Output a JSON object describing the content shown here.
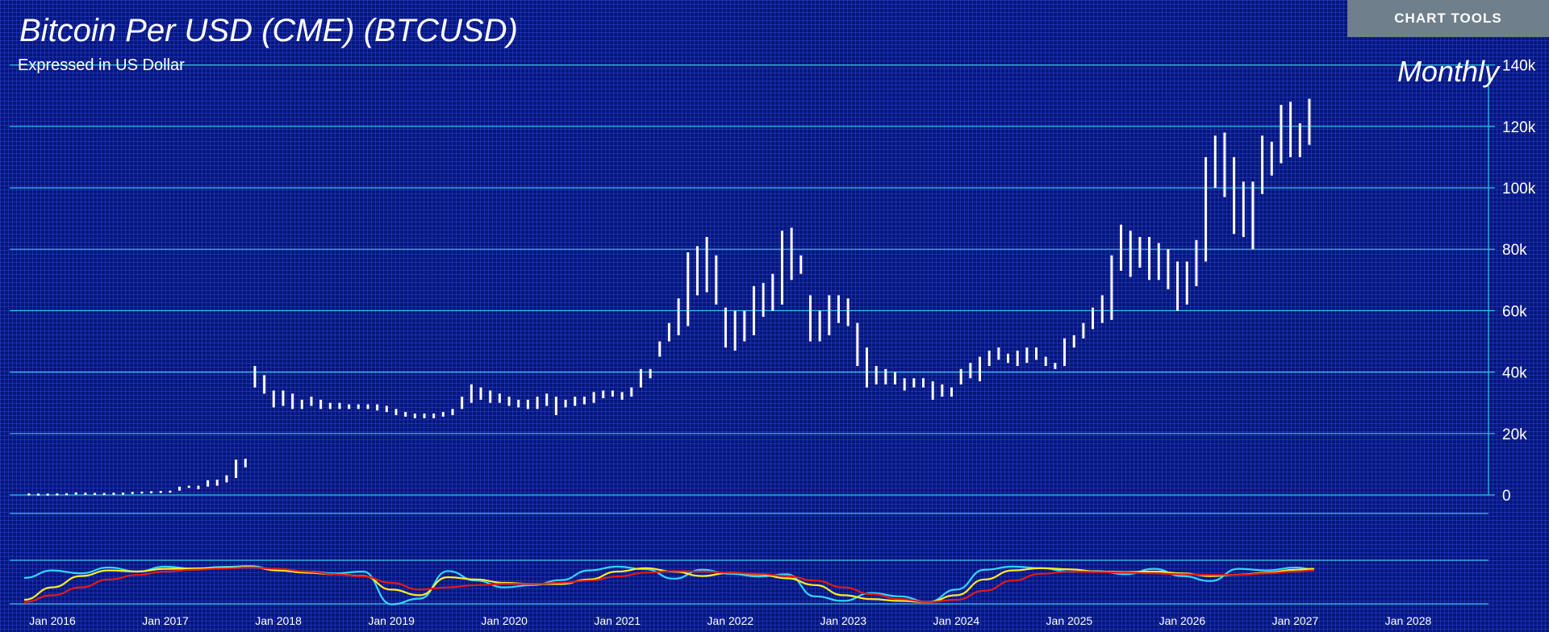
{
  "header": {
    "title": "Bitcoin Per USD (CME) (BTCUSD)",
    "subtitle": "Expressed in US Dollar",
    "frequency": "Monthly",
    "chart_tools_label": "CHART TOOLS"
  },
  "colors": {
    "background": "#06167a",
    "gridline": "#33c7e8",
    "price_bars": "#ffffff",
    "oscillator_fast": "#35d6ff",
    "oscillator_signal": "#ffee22",
    "oscillator_slow": "#e21a1a",
    "button": "#6f7f8b"
  },
  "chart_data": [
    {
      "type": "ohlc",
      "title": "Bitcoin Per USD (CME) (BTCUSD)",
      "subtitle": "Expressed in US Dollar",
      "y_ticks": [
        "0",
        "20k",
        "40k",
        "60k",
        "80k",
        "100k",
        "120k",
        "140k"
      ],
      "ylim": [
        0,
        140000
      ],
      "x_ticks": [
        "Jan 2016",
        "Jan 2017",
        "Jan 2018",
        "Jan 2019",
        "Jan 2020",
        "Jan 2021",
        "Jan 2022",
        "Jan 2023",
        "Jan 2024",
        "Jan 2025",
        "Jan 2026",
        "Jan 2027",
        "Jan 2028"
      ],
      "xlim": [
        "2015-12",
        "2028-09"
      ],
      "grid": true,
      "monthly_ranges": {
        "columns": [
          "month",
          "low",
          "high"
        ],
        "rows": [
          [
            "2016-01",
            300,
            500
          ],
          [
            "2016-02",
            350,
            450
          ],
          [
            "2016-03",
            380,
            450
          ],
          [
            "2016-04",
            400,
            500
          ],
          [
            "2016-05",
            420,
            550
          ],
          [
            "2016-06",
            500,
            800
          ],
          [
            "2016-07",
            600,
            700
          ],
          [
            "2016-08",
            550,
            650
          ],
          [
            "2016-09",
            590,
            630
          ],
          [
            "2016-10",
            600,
            720
          ],
          [
            "2016-11",
            700,
            750
          ],
          [
            "2016-12",
            740,
            980
          ],
          [
            "2017-01",
            800,
            1100
          ],
          [
            "2017-02",
            900,
            1200
          ],
          [
            "2017-03",
            900,
            1300
          ],
          [
            "2017-04",
            1100,
            1400
          ],
          [
            "2017-05",
            1400,
            2700
          ],
          [
            "2017-06",
            2300,
            3000
          ],
          [
            "2017-07",
            1900,
            3000
          ],
          [
            "2017-08",
            2700,
            4800
          ],
          [
            "2017-09",
            3000,
            5000
          ],
          [
            "2017-10",
            4100,
            6400
          ],
          [
            "2017-11",
            5500,
            11500
          ],
          [
            "2017-12",
            9000,
            11800
          ],
          [
            "2018-01",
            35000,
            42000
          ],
          [
            "2018-02",
            33000,
            39000
          ],
          [
            "2018-03",
            28500,
            34000
          ],
          [
            "2018-04",
            29000,
            34000
          ],
          [
            "2018-05",
            28000,
            33000
          ],
          [
            "2018-06",
            28000,
            31000
          ],
          [
            "2018-07",
            29000,
            32000
          ],
          [
            "2018-08",
            28000,
            31000
          ],
          [
            "2018-09",
            28000,
            30000
          ],
          [
            "2018-10",
            28000,
            30000
          ],
          [
            "2018-11",
            28000,
            29500
          ],
          [
            "2018-12",
            28000,
            29500
          ],
          [
            "2019-01",
            28000,
            29500
          ],
          [
            "2019-02",
            27500,
            29500
          ],
          [
            "2019-03",
            27000,
            29000
          ],
          [
            "2019-04",
            26000,
            28000
          ],
          [
            "2019-05",
            25500,
            27000
          ],
          [
            "2019-06",
            25000,
            26500
          ],
          [
            "2019-07",
            25000,
            26500
          ],
          [
            "2019-08",
            25000,
            26500
          ],
          [
            "2019-09",
            25500,
            27000
          ],
          [
            "2019-10",
            26000,
            28000
          ],
          [
            "2019-11",
            28000,
            32000
          ],
          [
            "2019-12",
            30000,
            36000
          ],
          [
            "2020-01",
            31000,
            35000
          ],
          [
            "2020-02",
            30000,
            34000
          ],
          [
            "2020-03",
            30000,
            33000
          ],
          [
            "2020-04",
            29000,
            32000
          ],
          [
            "2020-05",
            28500,
            31000
          ],
          [
            "2020-06",
            28000,
            31000
          ],
          [
            "2020-07",
            28000,
            32000
          ],
          [
            "2020-08",
            29000,
            33000
          ],
          [
            "2020-09",
            26000,
            32000
          ],
          [
            "2020-10",
            28500,
            31000
          ],
          [
            "2020-11",
            29000,
            32000
          ],
          [
            "2020-12",
            29500,
            32000
          ],
          [
            "2021-01",
            30000,
            33500
          ],
          [
            "2021-02",
            31500,
            34000
          ],
          [
            "2021-03",
            32000,
            34000
          ],
          [
            "2021-04",
            31000,
            33500
          ],
          [
            "2021-05",
            32000,
            35000
          ],
          [
            "2021-06",
            35000,
            41000
          ],
          [
            "2021-07",
            38000,
            41000
          ],
          [
            "2021-08",
            45000,
            50000
          ],
          [
            "2021-09",
            50000,
            56000
          ],
          [
            "2021-10",
            52000,
            64000
          ],
          [
            "2021-11",
            55000,
            79000
          ],
          [
            "2021-12",
            65000,
            81000
          ],
          [
            "2022-01",
            66000,
            84000
          ],
          [
            "2022-02",
            62000,
            78000
          ],
          [
            "2022-03",
            48000,
            61000
          ],
          [
            "2022-04",
            47000,
            60000
          ],
          [
            "2022-05",
            50000,
            60000
          ],
          [
            "2022-06",
            52000,
            68000
          ],
          [
            "2022-07",
            58000,
            69000
          ],
          [
            "2022-08",
            60000,
            72000
          ],
          [
            "2022-09",
            62000,
            86000
          ],
          [
            "2022-10",
            70000,
            87000
          ],
          [
            "2022-11",
            72000,
            78000
          ],
          [
            "2022-12",
            50000,
            65000
          ],
          [
            "2023-01",
            50000,
            60000
          ],
          [
            "2023-02",
            52000,
            65000
          ],
          [
            "2023-03",
            56000,
            65000
          ],
          [
            "2023-04",
            55000,
            64000
          ],
          [
            "2023-05",
            42000,
            56000
          ],
          [
            "2023-06",
            35000,
            48000
          ],
          [
            "2023-07",
            36000,
            42000
          ],
          [
            "2023-08",
            36000,
            41000
          ],
          [
            "2023-09",
            36000,
            40000
          ],
          [
            "2023-10",
            34000,
            38000
          ],
          [
            "2023-11",
            35000,
            38000
          ],
          [
            "2023-12",
            35000,
            38000
          ],
          [
            "2024-01",
            31000,
            37000
          ],
          [
            "2024-02",
            32000,
            36000
          ],
          [
            "2024-03",
            32000,
            35000
          ],
          [
            "2024-04",
            36000,
            41000
          ],
          [
            "2024-05",
            38000,
            43000
          ],
          [
            "2024-06",
            37000,
            45000
          ],
          [
            "2024-07",
            42000,
            47000
          ],
          [
            "2024-08",
            44000,
            48000
          ],
          [
            "2024-09",
            43000,
            46000
          ],
          [
            "2024-10",
            42000,
            47000
          ],
          [
            "2024-11",
            43000,
            48000
          ],
          [
            "2024-12",
            44000,
            48000
          ],
          [
            "2025-01",
            42000,
            45000
          ],
          [
            "2025-02",
            41000,
            43000
          ],
          [
            "2025-03",
            42000,
            51000
          ],
          [
            "2025-04",
            48000,
            52000
          ],
          [
            "2025-05",
            51000,
            56000
          ],
          [
            "2025-06",
            54000,
            61000
          ],
          [
            "2025-07",
            56000,
            65000
          ],
          [
            "2025-08",
            57000,
            78000
          ],
          [
            "2025-09",
            73000,
            88000
          ],
          [
            "2025-10",
            71000,
            86000
          ],
          [
            "2025-11",
            74000,
            84000
          ],
          [
            "2025-12",
            70000,
            84000
          ],
          [
            "2026-01",
            70000,
            82000
          ],
          [
            "2026-02",
            67000,
            80000
          ],
          [
            "2026-03",
            60000,
            76000
          ],
          [
            "2026-04",
            62000,
            76000
          ],
          [
            "2026-05",
            68000,
            83000
          ],
          [
            "2026-06",
            76000,
            110000
          ],
          [
            "2026-07",
            100000,
            117000
          ],
          [
            "2026-08",
            97000,
            118000
          ],
          [
            "2026-09",
            85000,
            110000
          ],
          [
            "2026-10",
            84000,
            102000
          ],
          [
            "2026-11",
            80000,
            102000
          ],
          [
            "2026-12",
            98000,
            117000
          ],
          [
            "2027-01",
            104000,
            115000
          ],
          [
            "2027-02",
            108000,
            127000
          ],
          [
            "2027-03",
            110000,
            128000
          ],
          [
            "2027-04",
            110000,
            121000
          ],
          [
            "2027-05",
            114000,
            129000
          ]
        ]
      }
    },
    {
      "type": "line",
      "panel": "oscillator",
      "grid": true,
      "series": [
        {
          "color": "#35d6ff",
          "x": [
            "2016-01",
            "2016-04",
            "2016-07",
            "2016-10",
            "2017-01",
            "2017-04",
            "2017-07",
            "2017-10",
            "2018-01",
            "2018-04",
            "2018-07",
            "2018-10",
            "2019-01",
            "2019-04",
            "2019-07",
            "2019-10",
            "2020-01",
            "2020-04",
            "2020-07",
            "2020-10",
            "2021-01",
            "2021-04",
            "2021-07",
            "2021-10",
            "2022-01",
            "2022-04",
            "2022-07",
            "2022-10",
            "2023-01",
            "2023-04",
            "2023-07",
            "2023-10",
            "2024-01",
            "2024-04",
            "2024-07",
            "2024-10",
            "2025-01",
            "2025-04",
            "2025-07",
            "2025-10",
            "2026-01",
            "2026-04",
            "2026-07",
            "2026-10",
            "2027-01",
            "2027-04",
            "2027-06"
          ],
          "values": [
            0.22,
            0.55,
            0.42,
            0.68,
            0.5,
            0.72,
            0.62,
            0.7,
            0.74,
            0.55,
            0.5,
            0.42,
            0.5,
            -0.95,
            -0.7,
            0.52,
            0.1,
            -0.2,
            -0.1,
            0.12,
            0.55,
            0.72,
            0.6,
            0.18,
            0.58,
            0.4,
            0.28,
            0.38,
            -0.6,
            -0.8,
            -0.45,
            -0.6,
            -0.85,
            -0.3,
            0.58,
            0.72,
            0.65,
            0.5,
            0.52,
            0.38,
            0.62,
            0.3,
            0.08,
            0.62,
            0.55,
            0.68,
            0.6
          ]
        },
        {
          "color": "#ffee22",
          "x": [
            "2016-01",
            "2016-04",
            "2016-07",
            "2016-10",
            "2017-01",
            "2017-04",
            "2017-07",
            "2017-10",
            "2018-01",
            "2018-04",
            "2018-07",
            "2018-10",
            "2019-01",
            "2019-04",
            "2019-07",
            "2019-10",
            "2020-01",
            "2020-04",
            "2020-07",
            "2020-10",
            "2021-01",
            "2021-04",
            "2021-07",
            "2021-10",
            "2022-01",
            "2022-04",
            "2022-07",
            "2022-10",
            "2023-01",
            "2023-04",
            "2023-07",
            "2023-10",
            "2024-01",
            "2024-04",
            "2024-07",
            "2024-10",
            "2025-01",
            "2025-04",
            "2025-07",
            "2025-10",
            "2026-01",
            "2026-04",
            "2026-07",
            "2026-10",
            "2027-01",
            "2027-04",
            "2027-06"
          ],
          "values": [
            -0.75,
            -0.2,
            0.3,
            0.55,
            0.5,
            0.62,
            0.64,
            0.66,
            0.7,
            0.55,
            0.45,
            0.38,
            0.3,
            -0.3,
            -0.55,
            0.25,
            0.15,
            0.0,
            -0.05,
            -0.05,
            0.15,
            0.5,
            0.65,
            0.5,
            0.3,
            0.45,
            0.38,
            0.2,
            -0.1,
            -0.55,
            -0.72,
            -0.8,
            -0.85,
            -0.55,
            0.15,
            0.55,
            0.65,
            0.6,
            0.5,
            0.48,
            0.5,
            0.42,
            0.3,
            0.36,
            0.45,
            0.58,
            0.62
          ]
        },
        {
          "color": "#e21a1a",
          "x": [
            "2016-01",
            "2016-04",
            "2016-07",
            "2016-10",
            "2017-01",
            "2017-04",
            "2017-07",
            "2017-10",
            "2018-01",
            "2018-04",
            "2018-07",
            "2018-10",
            "2019-01",
            "2019-04",
            "2019-07",
            "2019-10",
            "2020-01",
            "2020-04",
            "2020-07",
            "2020-10",
            "2021-01",
            "2021-04",
            "2021-07",
            "2021-10",
            "2022-01",
            "2022-04",
            "2022-07",
            "2022-10",
            "2023-01",
            "2023-04",
            "2023-07",
            "2023-10",
            "2024-01",
            "2024-04",
            "2024-07",
            "2024-10",
            "2025-01",
            "2025-04",
            "2025-07",
            "2025-10",
            "2026-01",
            "2026-04",
            "2026-07",
            "2026-10",
            "2027-01",
            "2027-04",
            "2027-06"
          ],
          "values": [
            -0.85,
            -0.55,
            -0.2,
            0.15,
            0.35,
            0.5,
            0.58,
            0.63,
            0.68,
            0.62,
            0.5,
            0.38,
            0.28,
            0.0,
            -0.3,
            -0.2,
            -0.1,
            -0.05,
            -0.05,
            0.0,
            0.1,
            0.28,
            0.45,
            0.52,
            0.5,
            0.45,
            0.4,
            0.3,
            0.1,
            -0.2,
            -0.5,
            -0.72,
            -0.85,
            -0.75,
            -0.35,
            0.1,
            0.4,
            0.5,
            0.48,
            0.45,
            0.42,
            0.38,
            0.35,
            0.35,
            0.42,
            0.5,
            0.55
          ]
        }
      ]
    }
  ]
}
